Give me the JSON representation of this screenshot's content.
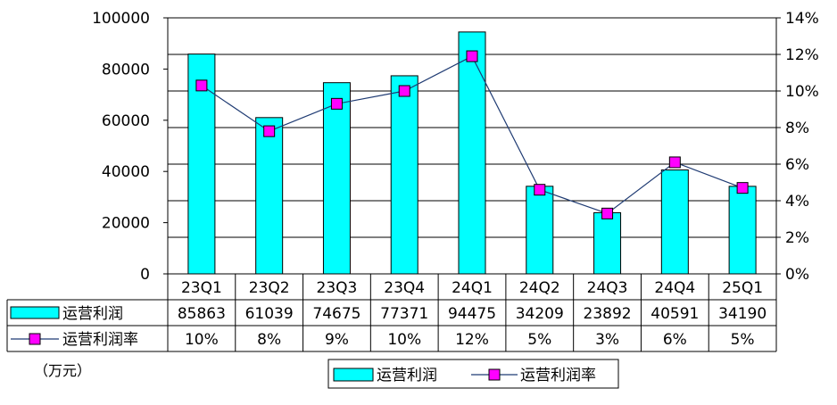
{
  "chart_data": {
    "type": "bar",
    "categories": [
      "23Q1",
      "23Q2",
      "23Q3",
      "23Q4",
      "24Q1",
      "24Q2",
      "24Q3",
      "24Q4",
      "25Q1"
    ],
    "series": [
      {
        "name": "运营利润",
        "type": "bar",
        "axis": "left",
        "color": "#00ffff",
        "values": [
          85863,
          61039,
          74675,
          77371,
          94475,
          34209,
          23892,
          40591,
          34190
        ]
      },
      {
        "name": "运营利润率",
        "type": "line",
        "axis": "right",
        "color": "#ff00ff",
        "line_color": "#1f3b73",
        "values": [
          10.3,
          7.8,
          9.3,
          10.0,
          11.9,
          4.6,
          3.3,
          6.1,
          4.7
        ]
      }
    ],
    "y_left": {
      "range": [
        0,
        100000
      ],
      "ticks": [
        "0",
        "20000",
        "40000",
        "60000",
        "80000",
        "100000"
      ]
    },
    "y_right": {
      "range": [
        0,
        14
      ],
      "ticks": [
        "0%",
        "2%",
        "4%",
        "6%",
        "8%",
        "10%",
        "12%",
        "14%"
      ]
    },
    "table": {
      "rows": [
        {
          "label": "运营利润",
          "values": [
            "85863",
            "61039",
            "74675",
            "77371",
            "94475",
            "34209",
            "23892",
            "40591",
            "34190"
          ]
        },
        {
          "label": "运营利润率",
          "values": [
            "10%",
            "8%",
            "9%",
            "10%",
            "12%",
            "5%",
            "3%",
            "6%",
            "5%"
          ]
        }
      ]
    },
    "unit_label": "（万元）",
    "legend": {
      "position": "bottom",
      "items": [
        "运营利润",
        "运营利润率"
      ]
    },
    "grid": true
  }
}
